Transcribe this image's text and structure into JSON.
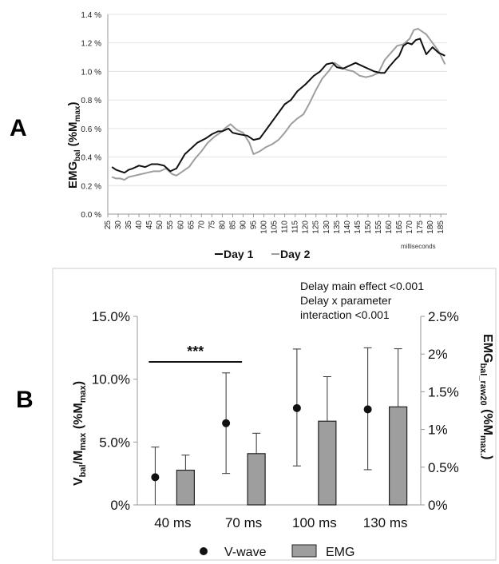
{
  "panel_a_label": "A",
  "panel_b_label": "B",
  "chart_data": [
    {
      "type": "line",
      "ylabel_main": "EMG",
      "ylabel_sub": "bal",
      "ylabel_paren": "(%M",
      "ylabel_paren_sub": "max",
      "ylabel_close": ")",
      "xunit": "milliseconds",
      "xlim": [
        25,
        188
      ],
      "ylim": [
        0,
        1.4
      ],
      "yticks": [
        0,
        0.2,
        0.4,
        0.6,
        0.8,
        1.0,
        1.2,
        1.4
      ],
      "ytick_labels": [
        "0.0 %",
        "0.2 %",
        "0.4 %",
        "0.6 %",
        "0.8 %",
        "1.0 %",
        "1.2 %",
        "1.4 %"
      ],
      "xticks": [
        25,
        30,
        35,
        40,
        45,
        50,
        55,
        60,
        65,
        70,
        75,
        80,
        85,
        90,
        95,
        100,
        105,
        110,
        115,
        120,
        125,
        130,
        135,
        140,
        145,
        150,
        155,
        160,
        165,
        170,
        175,
        180,
        185
      ],
      "grid": "horizontal",
      "legend_position": "bottom",
      "series": [
        {
          "name": "Day 1",
          "color": "#111111",
          "x": [
            27,
            29,
            31,
            33,
            35,
            37,
            40,
            43,
            46,
            49,
            52,
            55,
            58,
            60,
            62,
            65,
            68,
            72,
            75,
            78,
            80,
            83,
            85,
            88,
            92,
            95,
            98,
            100,
            103,
            106,
            110,
            113,
            116,
            120,
            124,
            127,
            130,
            133,
            135,
            138,
            141,
            144,
            147,
            150,
            153,
            156,
            158,
            160,
            163,
            165,
            167,
            169,
            171,
            173,
            175,
            178,
            181,
            184,
            187
          ],
          "y": [
            0.33,
            0.31,
            0.3,
            0.29,
            0.31,
            0.32,
            0.34,
            0.33,
            0.35,
            0.35,
            0.34,
            0.3,
            0.32,
            0.37,
            0.42,
            0.46,
            0.5,
            0.53,
            0.56,
            0.58,
            0.58,
            0.6,
            0.57,
            0.56,
            0.55,
            0.52,
            0.53,
            0.57,
            0.63,
            0.69,
            0.77,
            0.8,
            0.86,
            0.91,
            0.97,
            1.0,
            1.05,
            1.06,
            1.03,
            1.02,
            1.04,
            1.06,
            1.04,
            1.02,
            1.0,
            0.99,
            0.99,
            1.03,
            1.08,
            1.11,
            1.18,
            1.2,
            1.19,
            1.22,
            1.23,
            1.12,
            1.17,
            1.13,
            1.11
          ]
        },
        {
          "name": "Day 2",
          "color": "#9e9e9e",
          "x": [
            27,
            29,
            31,
            33,
            35,
            38,
            41,
            44,
            47,
            50,
            53,
            56,
            58,
            61,
            64,
            67,
            70,
            73,
            76,
            79,
            82,
            84,
            87,
            90,
            93,
            95,
            98,
            101,
            104,
            107,
            110,
            113,
            116,
            119,
            122,
            125,
            128,
            131,
            134,
            137,
            140,
            143,
            146,
            149,
            152,
            155,
            158,
            161,
            164,
            167,
            170,
            172,
            174,
            176,
            178,
            181,
            184,
            187
          ],
          "y": [
            0.26,
            0.25,
            0.25,
            0.24,
            0.26,
            0.27,
            0.28,
            0.29,
            0.3,
            0.3,
            0.32,
            0.28,
            0.27,
            0.3,
            0.33,
            0.39,
            0.44,
            0.5,
            0.54,
            0.57,
            0.61,
            0.63,
            0.59,
            0.57,
            0.5,
            0.42,
            0.44,
            0.47,
            0.49,
            0.52,
            0.57,
            0.63,
            0.67,
            0.7,
            0.78,
            0.87,
            0.95,
            1.0,
            1.06,
            1.03,
            1.01,
            1.0,
            0.97,
            0.96,
            0.97,
            0.99,
            1.08,
            1.13,
            1.18,
            1.19,
            1.23,
            1.29,
            1.3,
            1.28,
            1.26,
            1.2,
            1.14,
            1.05
          ]
        }
      ]
    },
    {
      "type": "bar",
      "categories": [
        "40 ms",
        "70 ms",
        "100 ms",
        "130 ms"
      ],
      "y_left_label_main": "V",
      "y_left_label_sub": "bal",
      "y_left_label_mid": "/M",
      "y_left_label_sub2": "max",
      "y_left_label_paren": " (%M",
      "y_left_label_sub3": "max",
      "y_left_label_close": ")",
      "y_left_ticks": [
        0,
        5,
        10,
        15
      ],
      "y_left_tick_labels": [
        "0%",
        "5.0%",
        "10.0%",
        "15.0%"
      ],
      "y_left_lim": [
        0,
        15
      ],
      "y_right_label_main": "EMG",
      "y_right_label_sub": "bal_raw20",
      "y_right_label_paren": " (%M",
      "y_right_label_sub2": "max.",
      "y_right_label_close": ")",
      "y_right_ticks": [
        0,
        0.5,
        1,
        1.5,
        2,
        2.5
      ],
      "y_right_tick_labels": [
        "0%",
        "0.5%",
        "1%",
        "1.5%",
        "2%",
        "2.5%"
      ],
      "y_right_lim": [
        0,
        2.5
      ],
      "vwave": {
        "name": "V-wave",
        "values": [
          2.2,
          6.5,
          7.7,
          7.6
        ],
        "err_low": [
          0,
          2.5,
          3.1,
          2.8
        ],
        "err_high": [
          4.6,
          10.5,
          12.4,
          12.5
        ]
      },
      "emg": {
        "name": "EMG",
        "values": [
          0.46,
          0.68,
          1.11,
          1.3
        ],
        "err_low": [
          0.46,
          0.68,
          1.11,
          1.3
        ],
        "err_high": [
          0.66,
          0.95,
          1.7,
          2.07
        ]
      },
      "significance": {
        "label": "***",
        "from": "40 ms",
        "to": "70 ms"
      },
      "annotations": [
        "Delay main effect <0.001",
        "Delay x parameter",
        "interaction <0.001"
      ],
      "legend_position": "bottom",
      "colors": {
        "bar": "#9e9e9e",
        "dot": "#111111",
        "border": "#222222"
      }
    }
  ]
}
